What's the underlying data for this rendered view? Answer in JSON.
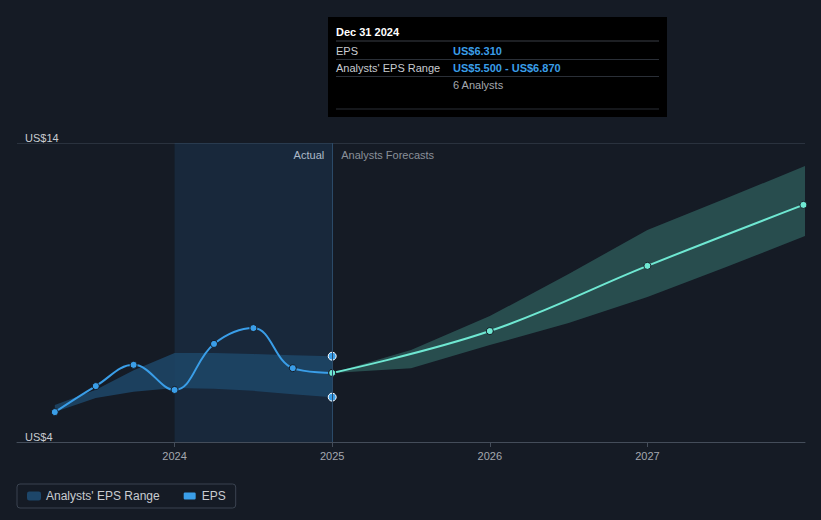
{
  "chart_data": {
    "type": "line",
    "xlim": [
      2023,
      2028
    ],
    "xticks": [
      2024,
      2025,
      2026,
      2027
    ],
    "ylim": [
      4,
      14
    ],
    "yticks": [
      {
        "value": 4,
        "label": "US$4"
      },
      {
        "value": 14,
        "label": "US$14"
      }
    ],
    "grid": true,
    "legend": "bottom-left",
    "highlight": [
      2024,
      2025
    ],
    "annotations": [
      {
        "text": "Actual",
        "x": 2025,
        "side": "left"
      },
      {
        "text": "Analysts Forecasts",
        "x": 2025,
        "side": "right"
      }
    ],
    "tooltip": {
      "title": "Dec 31 2024",
      "rows": [
        {
          "label": "EPS",
          "value": "US$6.310"
        },
        {
          "label": "Analysts' EPS Range",
          "value": "US$5.500 - US$6.870"
        },
        {
          "value": "6 Analysts"
        }
      ]
    },
    "series": [
      {
        "name": "Analysts' EPS Range",
        "type": "band",
        "color": "#1d4669",
        "marker": "circle",
        "x": [
          2023.24,
          2023.5,
          2023.74,
          2024.0,
          2024.25,
          2024.5,
          2024.75,
          2025.0
        ],
        "low": [
          5.0,
          5.47,
          5.68,
          5.81,
          5.78,
          5.71,
          5.6,
          5.5
        ],
        "high": [
          5.24,
          5.75,
          6.4,
          6.98,
          6.98,
          6.94,
          6.9,
          6.87
        ]
      },
      {
        "name": "Analysts' EPS Range",
        "type": "band",
        "color": "#2b5656",
        "x": [
          2025.0,
          2025.5,
          2026.0,
          2026.5,
          2027.0,
          2027.5,
          2028.0
        ],
        "low": [
          6.31,
          6.47,
          7.24,
          7.98,
          8.85,
          9.85,
          10.89
        ],
        "high": [
          6.31,
          7.08,
          8.21,
          9.62,
          11.09,
          12.15,
          13.23
        ]
      },
      {
        "name": "EPS",
        "type": "line",
        "color": "#3a9ee8",
        "marker": "circle",
        "x": [
          2023.24,
          2023.5,
          2023.74,
          2024.0,
          2024.25,
          2024.5,
          2024.75,
          2025.0
        ],
        "values": [
          5.0,
          5.87,
          6.58,
          5.74,
          7.28,
          7.81,
          6.47,
          6.31
        ]
      },
      {
        "name": "EPS",
        "type": "line",
        "color": "#6fe8d2",
        "marker": "circle",
        "x": [
          2025.0,
          2026.0,
          2027.0,
          2027.99
        ],
        "values": [
          6.31,
          7.71,
          9.89,
          11.93
        ]
      }
    ]
  }
}
